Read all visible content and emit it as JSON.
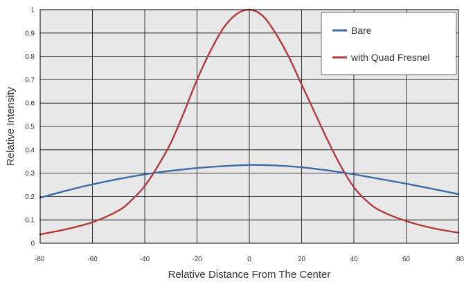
{
  "colors": {
    "plot_background": "#e8e8e8",
    "grid": "#000000",
    "frame": "#000000",
    "text": "#333333",
    "bare": "#3e6aa8",
    "quad_fresnel": "#b33a3a"
  },
  "chart_data": {
    "type": "line",
    "title": "",
    "xlabel": "Relative Distance From The Center",
    "ylabel": "Relative Intensity",
    "xlim": [
      -80,
      80
    ],
    "ylim": [
      0,
      1
    ],
    "x_ticks": [
      -80,
      -60,
      -40,
      -20,
      0,
      20,
      40,
      60,
      80
    ],
    "y_ticks": [
      0,
      0.1,
      0.2,
      0.3,
      0.4,
      0.5,
      0.6,
      0.7,
      0.8,
      0.9,
      1
    ],
    "grid": true,
    "legend_position": "top-right",
    "series": [
      {
        "name": "Bare",
        "color": "#3e6aa8",
        "x": [
          -80,
          -70,
          -60,
          -50,
          -40,
          -30,
          -20,
          -10,
          0,
          10,
          20,
          30,
          40,
          50,
          60,
          70,
          80
        ],
        "y": [
          0.195,
          0.225,
          0.252,
          0.275,
          0.295,
          0.31,
          0.322,
          0.33,
          0.335,
          0.333,
          0.325,
          0.312,
          0.295,
          0.275,
          0.255,
          0.233,
          0.21
        ]
      },
      {
        "name": "with Quad Fresnel",
        "color": "#b33a3a",
        "x": [
          -80,
          -70,
          -60,
          -50,
          -45,
          -40,
          -35,
          -30,
          -25,
          -20,
          -15,
          -10,
          -5,
          0,
          5,
          10,
          15,
          20,
          25,
          30,
          35,
          40,
          45,
          50,
          60,
          70,
          80
        ],
        "y": [
          0.038,
          0.06,
          0.09,
          0.14,
          0.185,
          0.245,
          0.33,
          0.43,
          0.56,
          0.7,
          0.82,
          0.92,
          0.98,
          1.0,
          0.975,
          0.9,
          0.8,
          0.68,
          0.56,
          0.44,
          0.33,
          0.24,
          0.18,
          0.14,
          0.095,
          0.065,
          0.045
        ]
      }
    ]
  }
}
